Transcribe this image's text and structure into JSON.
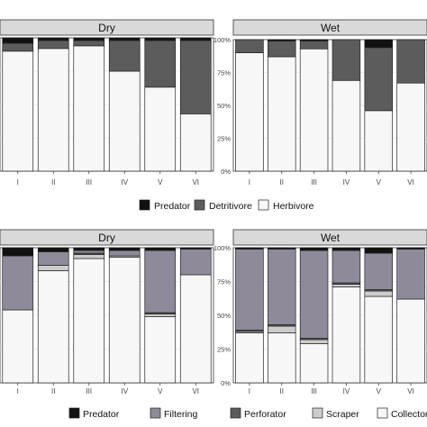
{
  "chart_data": [
    {
      "type": "bar",
      "stacked": true,
      "normalized": true,
      "panel_group": "top",
      "title": "Dry",
      "categories": [
        "I",
        "II",
        "III",
        "IV",
        "V",
        "VI"
      ],
      "series": [
        {
          "name": "Herbivore",
          "values": [
            90,
            92,
            94,
            75,
            63,
            43
          ]
        },
        {
          "name": "Detritivore",
          "values": [
            6,
            6,
            4,
            23,
            35,
            55
          ]
        },
        {
          "name": "Predator",
          "values": [
            4,
            2,
            2,
            2,
            2,
            2
          ]
        }
      ],
      "ylim": [
        0,
        100
      ],
      "yticks": [
        "0%",
        "25%",
        "50%",
        "75%",
        "100%"
      ],
      "show_yticks": false,
      "grid": true
    },
    {
      "type": "bar",
      "stacked": true,
      "normalized": true,
      "panel_group": "top",
      "title": "Wet",
      "categories": [
        "I",
        "II",
        "III",
        "IV",
        "V",
        "VI"
      ],
      "series": [
        {
          "name": "Herbivore",
          "values": [
            90,
            87,
            93,
            69,
            46,
            67
          ]
        },
        {
          "name": "Detritivore",
          "values": [
            10,
            12,
            6,
            31,
            48,
            33
          ]
        },
        {
          "name": "Predator",
          "values": [
            0,
            1,
            1,
            0,
            6,
            0
          ]
        }
      ],
      "ylim": [
        0,
        100
      ],
      "yticks": [
        "0%",
        "25%",
        "50%",
        "75%",
        "100%"
      ],
      "show_yticks": true,
      "grid": true
    },
    {
      "type": "bar",
      "stacked": true,
      "normalized": true,
      "panel_group": "bottom",
      "title": "Dry",
      "categories": [
        "I",
        "II",
        "III",
        "IV",
        "V",
        "VI"
      ],
      "series": [
        {
          "name": "Collector",
          "values": [
            54,
            83,
            92,
            93,
            49,
            80
          ]
        },
        {
          "name": "Scraper",
          "values": [
            0,
            4,
            3,
            1,
            2,
            0
          ]
        },
        {
          "name": "Perforator",
          "values": [
            0,
            0,
            1,
            0,
            1,
            0
          ]
        },
        {
          "name": "Filtering",
          "values": [
            40,
            10,
            2,
            4,
            46,
            19
          ]
        },
        {
          "name": "Predator",
          "values": [
            6,
            3,
            2,
            2,
            2,
            1
          ]
        }
      ],
      "ylim": [
        0,
        100
      ],
      "yticks": [
        "0%",
        "25%",
        "50%",
        "75%",
        "100%"
      ],
      "show_yticks": false,
      "grid": true
    },
    {
      "type": "bar",
      "stacked": true,
      "normalized": true,
      "panel_group": "bottom",
      "title": "Wet",
      "categories": [
        "I",
        "II",
        "III",
        "IV",
        "V",
        "VI"
      ],
      "series": [
        {
          "name": "Collector",
          "values": [
            37,
            37,
            29,
            71,
            64,
            62
          ]
        },
        {
          "name": "Scraper",
          "values": [
            1,
            5,
            3,
            2,
            4,
            0
          ]
        },
        {
          "name": "Perforator",
          "values": [
            1,
            1,
            1,
            1,
            1,
            0
          ]
        },
        {
          "name": "Filtering",
          "values": [
            60,
            56,
            65,
            24,
            27,
            37
          ]
        },
        {
          "name": "Predator",
          "values": [
            1,
            1,
            2,
            2,
            4,
            1
          ]
        }
      ],
      "ylim": [
        0,
        100
      ],
      "yticks": [
        "0%",
        "25%",
        "50%",
        "75%",
        "100%"
      ],
      "show_yticks": true,
      "grid": true
    }
  ],
  "legends": {
    "top": [
      {
        "name": "Predator",
        "color": "#111111"
      },
      {
        "name": "Detritivore",
        "color": "#5c5c5c"
      },
      {
        "name": "Herbivore",
        "color": "#f7f7f7"
      }
    ],
    "bottom": [
      {
        "name": "Predator",
        "color": "#111111"
      },
      {
        "name": "Filtering",
        "color": "#8f8a9a"
      },
      {
        "name": "Perforator",
        "color": "#5c5c5c"
      },
      {
        "name": "Scraper",
        "color": "#cccccc"
      },
      {
        "name": "Collector",
        "color": "#f7f7f7"
      }
    ]
  },
  "colors": {
    "Predator": "#111111",
    "Detritivore": "#5c5c5c",
    "Herbivore": "#f7f7f7",
    "Filtering": "#8f8a9a",
    "Perforator": "#5c5c5c",
    "Scraper": "#cccccc",
    "Collector": "#f7f7f7",
    "strip": "#d9d9d9",
    "grid": "#e6e6e6",
    "frame": "#333333"
  }
}
